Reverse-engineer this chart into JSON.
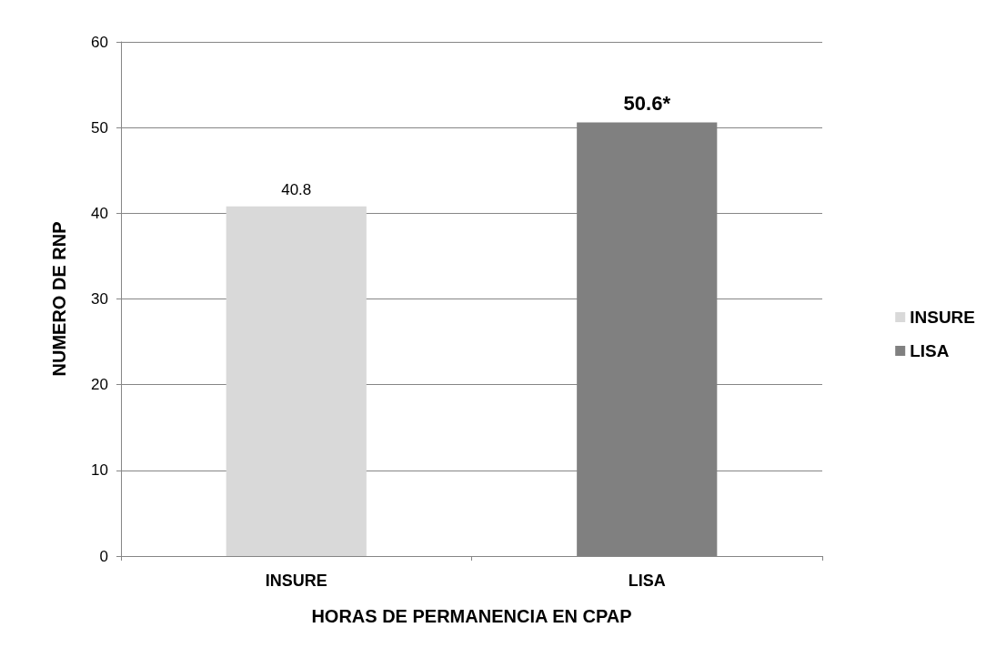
{
  "chart_data": {
    "type": "bar",
    "xlabel": "HORAS DE PERMANENCIA EN CPAP",
    "ylabel": "NUMERO DE RNP",
    "categories": [
      "INSURE",
      "LISA"
    ],
    "series": [
      {
        "name": "INSURE",
        "color": "#d9d9d9",
        "values": [
          40.8,
          null
        ],
        "value_labels": [
          "40.8",
          null
        ]
      },
      {
        "name": "LISA",
        "color": "#808080",
        "values": [
          null,
          50.6
        ],
        "value_labels": [
          null,
          "50.6*"
        ]
      }
    ],
    "ylim": [
      0,
      60
    ],
    "yticks": [
      0,
      10,
      20,
      30,
      40,
      50,
      60
    ],
    "grid": "y",
    "legend": "right"
  }
}
